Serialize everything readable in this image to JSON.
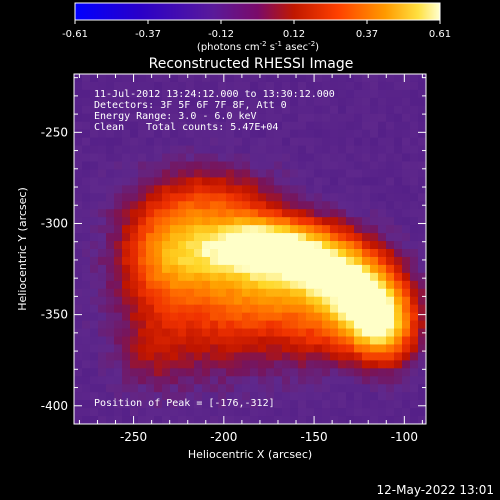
{
  "colorbar": {
    "ticks": [
      "-0.61",
      "-0.37",
      "-0.12",
      "0.12",
      "0.37",
      "0.61"
    ],
    "units_text": "(photons cm",
    "units_exp1": "-2",
    "units_s": " s",
    "units_exp2": "-1",
    "units_asec": " asec",
    "units_exp3": "-2",
    "units_close": ")",
    "range": [
      -0.61,
      0.61
    ]
  },
  "info": {
    "line1": "11-Jul-2012 13:24:12.000 to 13:30:12.000",
    "line2": "Detectors: 3F 5F 6F 7F 8F, Att 0",
    "line3": "Energy Range: 3.0 - 6.0 keV",
    "line4_left": "Clean",
    "line4_right": "Total counts: 5.47E+04",
    "peak": "Position of Peak = [-176,-312]"
  },
  "timestamp": "12-May-2022 13:01",
  "chart_data": {
    "type": "heatmap",
    "title": "Reconstructed RHESSI Image",
    "xlabel": "Heliocentric X (arcsec)",
    "ylabel": "Heliocentric Y (arcsec)",
    "xlim": [
      -283,
      -88
    ],
    "ylim": [
      -410,
      -218
    ],
    "xticks": [
      "-250",
      "-200",
      "-150",
      "-100"
    ],
    "xtick_values": [
      -250,
      -200,
      -150,
      -100
    ],
    "yticks": [
      "-250",
      "-300",
      "-350",
      "-400"
    ],
    "ytick_values": [
      -250,
      -300,
      -350,
      -400
    ],
    "peak_position": [
      -176,
      -312
    ],
    "sources": [
      {
        "x": -176,
        "y": -312,
        "sx": 20,
        "sy": 11,
        "amp": 0.6
      },
      {
        "x": -145,
        "y": -323,
        "sx": 18,
        "sy": 13,
        "amp": 0.5
      },
      {
        "x": -125,
        "y": -340,
        "sx": 16,
        "sy": 15,
        "amp": 0.52
      },
      {
        "x": -113,
        "y": -356,
        "sx": 13,
        "sy": 14,
        "amp": 0.55
      },
      {
        "x": -210,
        "y": -313,
        "sx": 22,
        "sy": 16,
        "amp": 0.34
      },
      {
        "x": -235,
        "y": -318,
        "sx": 17,
        "sy": 22,
        "amp": 0.26
      },
      {
        "x": -200,
        "y": -350,
        "sx": 30,
        "sy": 22,
        "amp": 0.22
      },
      {
        "x": -175,
        "y": -338,
        "sx": 20,
        "sy": 14,
        "amp": 0.22
      },
      {
        "x": -150,
        "y": -360,
        "sx": 14,
        "sy": 14,
        "amp": 0.14
      },
      {
        "x": -205,
        "y": -285,
        "sx": 24,
        "sy": 12,
        "amp": 0.18
      },
      {
        "x": -240,
        "y": -372,
        "sx": 14,
        "sy": 14,
        "amp": 0.1
      }
    ],
    "background_level": -0.05
  }
}
